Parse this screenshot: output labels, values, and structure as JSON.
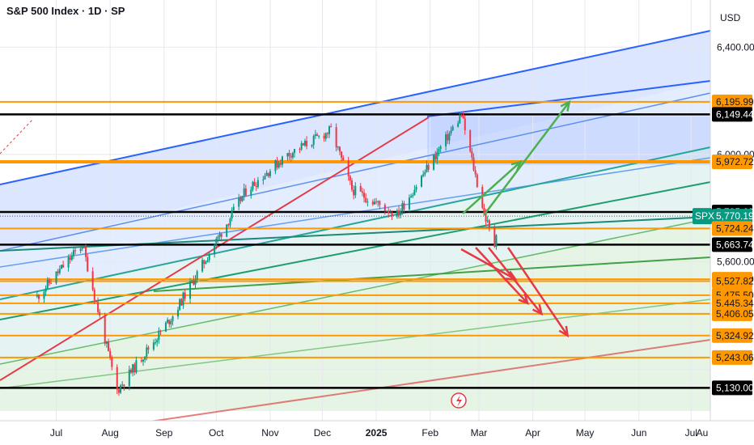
{
  "header": {
    "title": "S&P 500 Index · 1D · SP"
  },
  "price_axis": {
    "currency": "USD"
  },
  "chart_data": {
    "type": "candlestick",
    "title": "S&P 500 Index · 1D · SP",
    "symbol": "SPX",
    "timeframe": "1D",
    "currency": "USD",
    "y_ticks": [
      "6,400.00",
      "6,000.00",
      "5,600.00"
    ],
    "x_ticks": [
      "Jul",
      "Aug",
      "Sep",
      "Oct",
      "Nov",
      "Dec",
      "2025",
      "Feb",
      "Mar",
      "Apr",
      "May",
      "Jun",
      "Jul",
      "Au"
    ],
    "price_labels": [
      {
        "value": 6195.99,
        "text": "6,195.99",
        "color": "#ff9800"
      },
      {
        "value": 6149.44,
        "text": "6,149.44",
        "color": "#000000"
      },
      {
        "value": 5972.72,
        "text": "5,972.72",
        "color": "#ff9800"
      },
      {
        "value": 5785.69,
        "text": "5,785.69",
        "color": "#000000"
      },
      {
        "value": 5770.19,
        "text": "5,770.19",
        "color": "#089981"
      },
      {
        "value": 5724.24,
        "text": "5,724.24",
        "color": "#ff9800"
      },
      {
        "value": 5663.74,
        "text": "5,663.74",
        "color": "#000000"
      },
      {
        "value": 5534.8,
        "text": "5,534.80",
        "color": "#ff9800"
      },
      {
        "value": 5527.82,
        "text": "5,527.82",
        "color": "#ff9800"
      },
      {
        "value": 5475.5,
        "text": "5,475.50",
        "color": "#ff9800"
      },
      {
        "value": 5445.34,
        "text": "5,445.34",
        "color": "#ff9800"
      },
      {
        "value": 5406.05,
        "text": "5,406.05",
        "color": "#ff9800"
      },
      {
        "value": 5324.92,
        "text": "5,324.92",
        "color": "#ff9800"
      },
      {
        "value": 5243.06,
        "text": "5,243.06",
        "color": "#ff9800"
      },
      {
        "value": 5130.0,
        "text": "5,130.00",
        "color": "#000000"
      }
    ],
    "current_price": {
      "symbol": "SPX",
      "value": 5770.19
    },
    "key_points": [
      {
        "date": "2024-06-20",
        "close": 5470
      },
      {
        "date": "2024-07-16",
        "close": 5665
      },
      {
        "date": "2024-08-05",
        "low": 5120
      },
      {
        "date": "2024-09-06",
        "low": 5400
      },
      {
        "date": "2024-10-18",
        "close": 5865
      },
      {
        "date": "2024-11-11",
        "close": 6000
      },
      {
        "date": "2024-12-06",
        "close": 6090
      },
      {
        "date": "2024-12-18",
        "low": 5870
      },
      {
        "date": "2025-01-13",
        "low": 5775
      },
      {
        "date": "2025-02-19",
        "high": 6147
      },
      {
        "date": "2025-03-04",
        "close": 5780
      },
      {
        "date": "2025-03-10",
        "low": 5663
      }
    ],
    "scenario_arrows": {
      "bullish_targets": [
        5972.72,
        6195.99
      ],
      "bearish_targets": [
        5534.8,
        5445.34,
        5406.05,
        5324.92
      ]
    },
    "grid": true
  }
}
